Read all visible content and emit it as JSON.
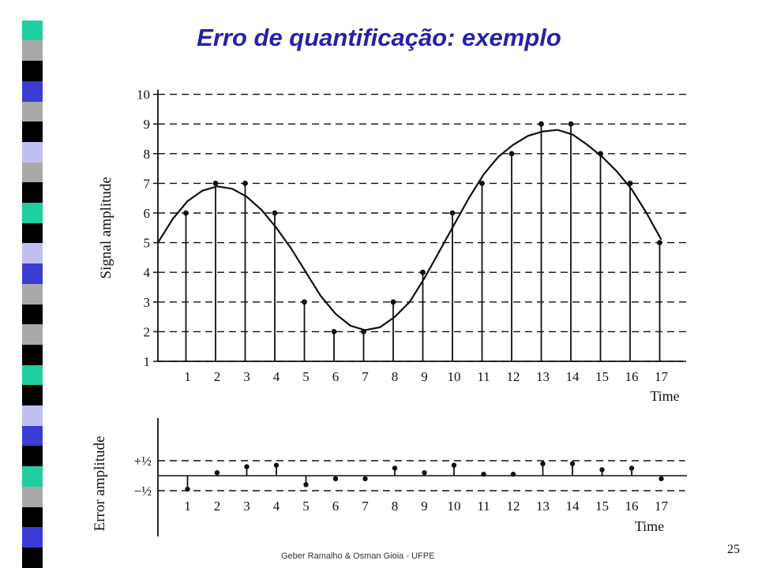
{
  "slide": {
    "title": "Erro de quantificação: exemplo",
    "footer": "Geber Ramalho & Osman Gioia - UFPE",
    "page_number": "25"
  },
  "colors": {
    "title": "#2323a8",
    "ink": "#111111",
    "stripe": [
      "#ffffff",
      "#1fcfa0",
      "#a9a9a9",
      "#000000",
      "#3b3bd6",
      "#a9a9a9",
      "#000000",
      "#c0c0f0",
      "#a9a9a9",
      "#000000",
      "#1fcfa0",
      "#000000",
      "#c0c0f0",
      "#3b3bd6",
      "#a9a9a9",
      "#000000",
      "#a9a9a9",
      "#000000",
      "#1fcfa0",
      "#000000",
      "#c0c0f0",
      "#3b3bd6",
      "#000000",
      "#1fcfa0",
      "#a9a9a9",
      "#000000",
      "#3b3bd6",
      "#000000"
    ]
  },
  "chart_data": [
    {
      "type": "line",
      "title": "",
      "xlabel": "Time",
      "ylabel": "Signal amplitude",
      "x": [
        1,
        2,
        3,
        4,
        5,
        6,
        7,
        8,
        9,
        10,
        11,
        12,
        13,
        14,
        15,
        16,
        17
      ],
      "xlim": [
        0,
        17.2
      ],
      "ylim": [
        1,
        10
      ],
      "yticks": [
        1,
        2,
        3,
        4,
        5,
        6,
        7,
        8,
        9,
        10
      ],
      "grid": "dashed horizontal at integer levels",
      "series": [
        {
          "kind": "continuous",
          "curve_t": [
            0,
            0.5,
            1,
            1.5,
            2,
            2.5,
            3,
            3.5,
            4,
            4.5,
            5,
            5.5,
            6,
            6.5,
            7,
            7.5,
            8,
            8.5,
            9,
            9.5,
            10,
            10.5,
            11,
            11.5,
            12,
            12.5,
            13,
            13.5,
            14,
            14.5,
            15,
            15.5,
            16,
            16.5,
            17
          ],
          "curve_v": [
            5.0,
            5.8,
            6.4,
            6.75,
            6.9,
            6.82,
            6.55,
            6.1,
            5.5,
            4.8,
            4.0,
            3.2,
            2.6,
            2.2,
            2.05,
            2.15,
            2.5,
            3.0,
            3.8,
            4.7,
            5.6,
            6.5,
            7.3,
            7.9,
            8.3,
            8.6,
            8.75,
            8.8,
            8.65,
            8.3,
            7.9,
            7.4,
            6.8,
            6.0,
            5.1
          ]
        },
        {
          "kind": "quantized_samples",
          "values": [
            6,
            7,
            7,
            6,
            3,
            2,
            2,
            3,
            4,
            6,
            7,
            8,
            9,
            9,
            8,
            7,
            5
          ]
        }
      ]
    },
    {
      "type": "line",
      "title": "",
      "xlabel": "Time",
      "ylabel": "Error amplitude",
      "x": [
        1,
        2,
        3,
        4,
        5,
        6,
        7,
        8,
        9,
        10,
        11,
        12,
        13,
        14,
        15,
        16,
        17
      ],
      "ylim": [
        -0.6,
        0.6
      ],
      "yticks": [
        {
          "value": 0.5,
          "label": "+½"
        },
        {
          "value": -0.5,
          "label": "−½"
        }
      ],
      "series": [
        {
          "kind": "error_stems",
          "values": [
            -0.45,
            0.1,
            0.3,
            0.35,
            -0.3,
            -0.1,
            -0.1,
            0.25,
            0.1,
            0.35,
            0.05,
            0.05,
            0.4,
            0.4,
            0.2,
            0.25,
            -0.1
          ]
        }
      ]
    }
  ]
}
